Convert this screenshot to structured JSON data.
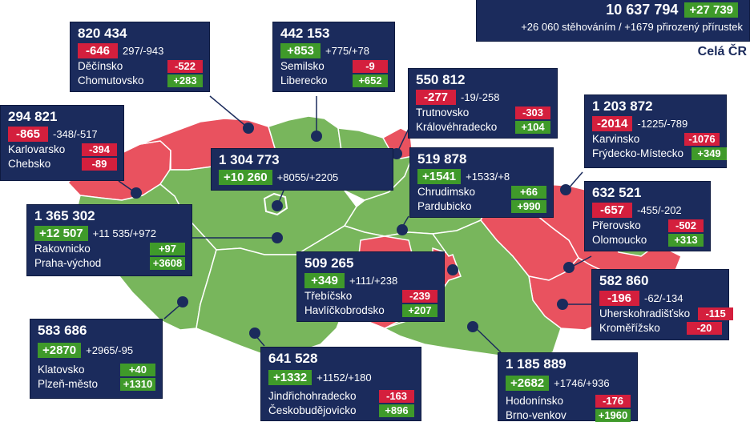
{
  "country": {
    "total": "10 637 794",
    "change": "+27 739",
    "breakdown": "+26 060 stěhováním / +1679 přirozený přírustek",
    "label": "Celá ČR"
  },
  "regions": [
    {
      "id": "ustecky",
      "pop": "820 434",
      "change": "-646",
      "change_sign": "neg",
      "breakdown": "297/-943",
      "districts": [
        {
          "name": "Děčínsko",
          "value": "-522",
          "sign": "neg"
        },
        {
          "name": "Chomutovsko",
          "value": "+283",
          "sign": "pos"
        }
      ]
    },
    {
      "id": "liberecky",
      "pop": "442 153",
      "change": "+853",
      "change_sign": "pos",
      "breakdown": "+775/+78",
      "districts": [
        {
          "name": "Semilsko",
          "value": "-9",
          "sign": "neg"
        },
        {
          "name": "Liberecko",
          "value": "+652",
          "sign": "pos"
        }
      ]
    },
    {
      "id": "kralovehradecky",
      "pop": "550 812",
      "change": "-277",
      "change_sign": "neg",
      "breakdown": "-19/-258",
      "districts": [
        {
          "name": "Trutnovsko",
          "value": "-303",
          "sign": "neg"
        },
        {
          "name": "Královéhradecko",
          "value": "+104",
          "sign": "pos"
        }
      ]
    },
    {
      "id": "karlovarsky",
      "pop": "294 821",
      "change": "-865",
      "change_sign": "neg",
      "breakdown": "-348/-517",
      "districts": [
        {
          "name": "Karlovarsko",
          "value": "-394",
          "sign": "neg"
        },
        {
          "name": "Chebsko",
          "value": "-89",
          "sign": "neg"
        }
      ]
    },
    {
      "id": "praha",
      "pop": "1 304 773",
      "change": "+10 260",
      "change_sign": "pos",
      "breakdown": "+8055/+2205",
      "districts": []
    },
    {
      "id": "pardubicky",
      "pop": "519 878",
      "change": "+1541",
      "change_sign": "pos",
      "breakdown": "+1533/+8",
      "districts": [
        {
          "name": "Chrudimsko",
          "value": "+66",
          "sign": "pos"
        },
        {
          "name": "Pardubicko",
          "value": "+990",
          "sign": "pos"
        }
      ]
    },
    {
      "id": "moravskoslezsky",
      "pop": "1 203 872",
      "change": "-2014",
      "change_sign": "neg",
      "breakdown": "-1225/-789",
      "districts": [
        {
          "name": "Karvinsko",
          "value": "-1076",
          "sign": "neg"
        },
        {
          "name": "Frýdecko-Místecko",
          "value": "+349",
          "sign": "pos"
        }
      ]
    },
    {
      "id": "stredocesky",
      "pop": "1 365 302",
      "change": "+12 507",
      "change_sign": "pos",
      "breakdown": "+11 535/+972",
      "districts": [
        {
          "name": "Rakovnicko",
          "value": "+97",
          "sign": "pos"
        },
        {
          "name": "Praha-východ",
          "value": "+3608",
          "sign": "pos"
        }
      ]
    },
    {
      "id": "olomoucky",
      "pop": "632 521",
      "change": "-657",
      "change_sign": "neg",
      "breakdown": "-455/-202",
      "districts": [
        {
          "name": "Přerovsko",
          "value": "-502",
          "sign": "neg"
        },
        {
          "name": "Olomoucko",
          "value": "+313",
          "sign": "pos"
        }
      ]
    },
    {
      "id": "vysocina",
      "pop": "509 265",
      "change": "+349",
      "change_sign": "pos",
      "breakdown": "+111/+238",
      "districts": [
        {
          "name": "Třebíčsko",
          "value": "-239",
          "sign": "neg"
        },
        {
          "name": "Havlíčkobrodsko",
          "value": "+207",
          "sign": "pos"
        }
      ]
    },
    {
      "id": "zlinsky",
      "pop": "582 860",
      "change": "-196",
      "change_sign": "neg",
      "breakdown": "-62/-134",
      "districts": [
        {
          "name": "Uherskohradišťsko",
          "value": "-115",
          "sign": "neg"
        },
        {
          "name": "Kroměřížsko",
          "value": "-20",
          "sign": "neg"
        }
      ]
    },
    {
      "id": "plzensky",
      "pop": "583 686",
      "change": "+2870",
      "change_sign": "pos",
      "breakdown": "+2965/-95",
      "districts": [
        {
          "name": "Klatovsko",
          "value": "+40",
          "sign": "pos"
        },
        {
          "name": "Plzeň-město",
          "value": "+1310",
          "sign": "pos"
        }
      ]
    },
    {
      "id": "jihocesky",
      "pop": "641 528",
      "change": "+1332",
      "change_sign": "pos",
      "breakdown": "+1152/+180",
      "districts": [
        {
          "name": "Jindřichohradecko",
          "value": "-163",
          "sign": "neg"
        },
        {
          "name": "Českobudějovicko",
          "value": "+896",
          "sign": "pos"
        }
      ]
    },
    {
      "id": "jihomoravsky",
      "pop": "1 185 889",
      "change": "+2682",
      "change_sign": "pos",
      "breakdown": "+1746/+936",
      "districts": [
        {
          "name": "Hodonínsko",
          "value": "-176",
          "sign": "neg"
        },
        {
          "name": "Brno-venkov",
          "value": "+1960",
          "sign": "pos"
        }
      ]
    }
  ],
  "colors": {
    "increase": "#78b65c",
    "decrease": "#e9525f",
    "box": "#1b2b5c",
    "badge_neg": "#d41f3d",
    "badge_pos": "#3f9a2a"
  }
}
